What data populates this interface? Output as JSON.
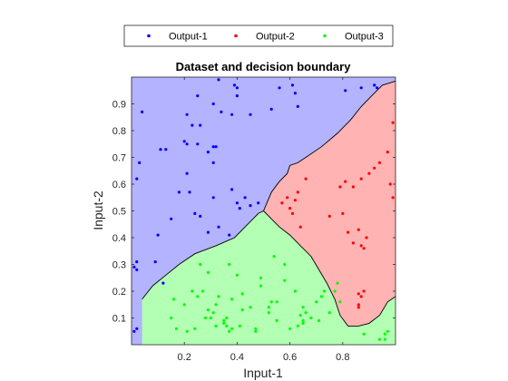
{
  "chart_data": {
    "type": "scatter",
    "title": "Dataset and decision boundary",
    "xlabel": "Input-1",
    "ylabel": "Input-2",
    "xlim": [
      0,
      1
    ],
    "ylim": [
      0,
      1
    ],
    "x_ticks": [
      0.2,
      0.4,
      0.6,
      0.8
    ],
    "y_ticks": [
      0.1,
      0.2,
      0.3,
      0.4,
      0.5,
      0.6,
      0.7,
      0.8,
      0.9
    ],
    "grid": false,
    "legend_position": "top, outside, horizontal",
    "regions": [
      {
        "class": "Output-1",
        "color": "#b3b3ff"
      },
      {
        "class": "Output-2",
        "color": "#ffb3b3"
      },
      {
        "class": "Output-3",
        "color": "#b3ffb3"
      }
    ],
    "boundary_blue_red": [
      [
        0.5,
        0.5
      ],
      [
        0.53,
        0.57
      ],
      [
        0.56,
        0.61
      ],
      [
        0.59,
        0.64
      ],
      [
        0.6,
        0.67
      ],
      [
        0.63,
        0.68
      ],
      [
        0.66,
        0.7
      ],
      [
        0.72,
        0.74
      ],
      [
        0.78,
        0.79
      ],
      [
        0.83,
        0.84
      ],
      [
        0.87,
        0.89
      ],
      [
        0.91,
        0.93
      ],
      [
        0.95,
        0.97
      ],
      [
        1.0,
        0.985
      ]
    ],
    "boundary_blue_green": [
      [
        0.04,
        0.17
      ],
      [
        0.08,
        0.22
      ],
      [
        0.13,
        0.26
      ],
      [
        0.18,
        0.3
      ],
      [
        0.24,
        0.34
      ],
      [
        0.32,
        0.37
      ],
      [
        0.39,
        0.4
      ],
      [
        0.44,
        0.45
      ],
      [
        0.48,
        0.49
      ],
      [
        0.5,
        0.5
      ]
    ],
    "boundary_green_red": [
      [
        0.5,
        0.5
      ],
      [
        0.53,
        0.47
      ],
      [
        0.56,
        0.44
      ],
      [
        0.6,
        0.41
      ],
      [
        0.64,
        0.37
      ],
      [
        0.68,
        0.33
      ],
      [
        0.71,
        0.28
      ],
      [
        0.74,
        0.23
      ],
      [
        0.77,
        0.17
      ],
      [
        0.79,
        0.11
      ],
      [
        0.82,
        0.07
      ],
      [
        0.86,
        0.07
      ],
      [
        0.9,
        0.08
      ],
      [
        0.94,
        0.11
      ],
      [
        0.97,
        0.16
      ],
      [
        1.0,
        0.18
      ]
    ],
    "series": [
      {
        "name": "Output-1",
        "color": "#0000ff",
        "x": [
          0.33,
          0.25,
          0.31,
          0.34,
          0.38,
          0.4,
          0.4,
          0.39,
          0.56,
          0.61,
          0.62,
          0.53,
          0.63,
          0.04,
          0.11,
          0.13,
          0.2,
          0.21,
          0.23,
          0.26,
          0.21,
          0.25,
          0.29,
          0.31,
          0.32,
          0.31,
          0.21,
          0.18,
          0.22,
          0.15,
          0.1,
          0.12,
          0.24,
          0.26,
          0.31,
          0.38,
          0.4,
          0.45,
          0.48,
          0.41,
          0.43,
          0.33,
          0.29,
          0.37,
          0.03,
          0.02,
          0.02,
          0.01,
          0.02,
          0.01,
          0.02,
          0.09,
          0.45,
          0.81,
          0.87,
          0.92,
          0.93
        ],
        "y": [
          0.99,
          0.93,
          0.9,
          0.87,
          0.86,
          0.93,
          0.96,
          0.97,
          0.96,
          0.97,
          0.94,
          0.88,
          0.89,
          0.87,
          0.73,
          0.73,
          0.76,
          0.86,
          0.82,
          0.82,
          0.75,
          0.75,
          0.72,
          0.74,
          0.74,
          0.68,
          0.64,
          0.57,
          0.57,
          0.47,
          0.41,
          0.23,
          0.49,
          0.48,
          0.55,
          0.58,
          0.53,
          0.52,
          0.53,
          0.51,
          0.55,
          0.44,
          0.42,
          0.41,
          0.68,
          0.62,
          0.31,
          0.29,
          0.28,
          0.05,
          0.06,
          0.31,
          0.86,
          0.95,
          0.96,
          0.97,
          0.96
        ],
        "marker": "dot"
      },
      {
        "name": "Output-2",
        "color": "#ff0000",
        "x": [
          0.66,
          0.63,
          0.59,
          0.57,
          0.62,
          0.6,
          0.61,
          0.64,
          0.75,
          0.79,
          0.81,
          0.84,
          0.87,
          0.92,
          0.9,
          0.94,
          0.97,
          0.99,
          0.98,
          0.99,
          0.8,
          0.86,
          0.82,
          0.84,
          0.87,
          0.88,
          0.89,
          0.88,
          0.87,
          0.86,
          0.86,
          0.86
        ],
        "y": [
          0.62,
          0.57,
          0.55,
          0.53,
          0.54,
          0.51,
          0.49,
          0.44,
          0.48,
          0.59,
          0.61,
          0.59,
          0.62,
          0.66,
          0.64,
          0.68,
          0.72,
          0.83,
          0.6,
          0.55,
          0.49,
          0.43,
          0.42,
          0.38,
          0.37,
          0.36,
          0.4,
          0.2,
          0.18,
          0.19,
          0.15,
          0.14
        ],
        "marker": "dot"
      },
      {
        "name": "Output-3",
        "color": "#00ff00",
        "x": [
          0.26,
          0.29,
          0.37,
          0.4,
          0.49,
          0.54,
          0.58,
          0.49,
          0.42,
          0.27,
          0.23,
          0.25,
          0.33,
          0.38,
          0.32,
          0.29,
          0.2,
          0.16,
          0.28,
          0.36,
          0.42,
          0.45,
          0.52,
          0.52,
          0.53,
          0.55,
          0.58,
          0.62,
          0.65,
          0.66,
          0.7,
          0.72,
          0.73,
          0.77,
          0.78,
          0.79,
          0.75,
          0.65,
          0.6,
          0.55,
          0.47,
          0.41,
          0.35,
          0.32,
          0.31,
          0.3,
          0.36,
          0.35,
          0.17,
          0.15,
          0.21,
          0.24,
          0.37,
          0.38,
          0.47,
          0.63,
          0.65,
          0.64,
          0.68,
          0.71,
          0.88,
          0.97,
          0.96,
          0.94,
          0.96
        ],
        "y": [
          0.3,
          0.27,
          0.3,
          0.26,
          0.25,
          0.33,
          0.3,
          0.22,
          0.19,
          0.2,
          0.2,
          0.18,
          0.18,
          0.17,
          0.15,
          0.13,
          0.15,
          0.17,
          0.1,
          0.1,
          0.13,
          0.14,
          0.14,
          0.12,
          0.16,
          0.16,
          0.24,
          0.2,
          0.14,
          0.12,
          0.16,
          0.18,
          0.2,
          0.2,
          0.23,
          0.16,
          0.12,
          0.08,
          0.06,
          0.09,
          0.05,
          0.07,
          0.08,
          0.07,
          0.12,
          0.1,
          0.07,
          0.09,
          0.06,
          0.1,
          0.05,
          0.06,
          0.05,
          0.06,
          0.06,
          0.07,
          0.09,
          0.11,
          0.1,
          0.09,
          0.04,
          0.05,
          0.02,
          0.02,
          0.04
        ],
        "marker": "dot"
      }
    ]
  }
}
